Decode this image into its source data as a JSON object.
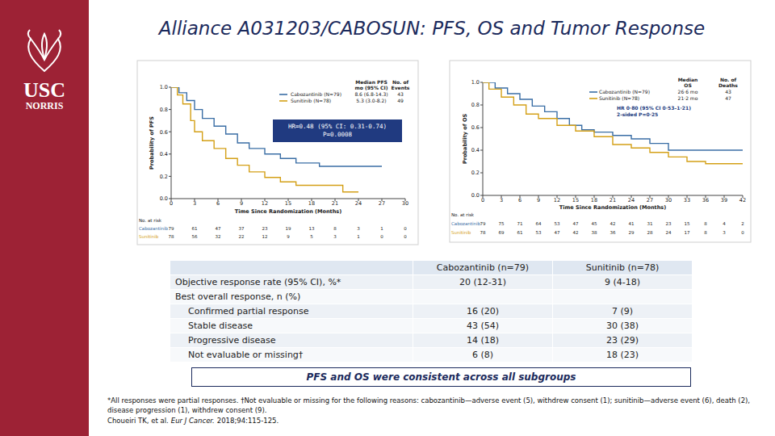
{
  "slide": {
    "title": "Alliance A031203/CABOSUN: PFS, OS and Tumor Response",
    "logo": [
      "USC",
      "NORRIS"
    ],
    "box": "PFS and OS were consistent across all subgroups",
    "footnote": "*All responses were partial responses. †Not evaluable or missing for the following reasons: cabozantinib—adverse event (5), withdrew consent (1); sunitinib—adverse event (6), death (2), disease progression (1), withdrew consent (9).",
    "citation": {
      "authors": "Choueiri TK, et al.",
      "journal": "Eur J Cancer.",
      "details": "2018;94:115-125."
    }
  },
  "table": {
    "columns": [
      "Cabozantinib (n=79)",
      "Sunitinib (n=78)"
    ],
    "rows": [
      {
        "label": "Objective response rate (95% CI), %*",
        "cells": [
          "20 (12-31)",
          "9 (4-18)"
        ]
      }
    ],
    "groups": [
      {
        "label": "Best overall response, n (%)",
        "rows": [
          {
            "label": "Confirmed partial response",
            "cells": [
              "16 (20)",
              "7 (9)"
            ]
          },
          {
            "label": "Stable disease",
            "cells": [
              "43 (54)",
              "30 (38)"
            ]
          },
          {
            "label": "Progressive disease",
            "cells": [
              "14 (18)",
              "23 (29)"
            ]
          },
          {
            "label": "Not evaluable or missing†",
            "cells": [
              "6 (8)",
              "18 (23)"
            ]
          }
        ]
      }
    ]
  },
  "chart_data": [
    {
      "type": "line",
      "xlabel": "Time Since Randomization (Months)",
      "ylabel": "Probability of PFS",
      "xlim": [
        0,
        30
      ],
      "xticks": [
        0,
        3,
        6,
        9,
        12,
        15,
        18,
        21,
        24,
        27,
        30
      ],
      "ylim": [
        0,
        1
      ],
      "yticks": [
        {
          "value": 0,
          "label": "0.0"
        },
        0.2,
        0.4,
        0.6,
        0.8,
        {
          "value": 1,
          "label": "1.0"
        }
      ],
      "grid": false,
      "legend": "top-right",
      "legend_headers": [
        [
          "Median PFS",
          "mo (95% CI)"
        ],
        [
          "No. of",
          "Events"
        ]
      ],
      "annotation": [
        "HR=0.48 (95% CI: 0.31-0.74)",
        "P=0.0008"
      ],
      "at_risk_title": "No. at risk",
      "series": [
        {
          "name": "Cabozantinib (N=79)",
          "color": "#3a6ea5",
          "median": "8.6 (6.8-14.3)",
          "count": 43,
          "at_risk_name": "Cabozantinib",
          "at_risk": [
            79,
            61,
            47,
            37,
            23,
            19,
            13,
            8,
            3,
            1,
            0
          ],
          "x": [
            0,
            1,
            1,
            2,
            2,
            3,
            3,
            4,
            4,
            5.5,
            5.5,
            7,
            7,
            8.5,
            8.5,
            10,
            10,
            12,
            12,
            14,
            14,
            16,
            16,
            19,
            19,
            27
          ],
          "values": [
            1,
            1,
            0.95,
            0.95,
            0.88,
            0.88,
            0.8,
            0.8,
            0.72,
            0.72,
            0.65,
            0.65,
            0.58,
            0.58,
            0.5,
            0.5,
            0.45,
            0.45,
            0.4,
            0.4,
            0.36,
            0.36,
            0.32,
            0.32,
            0.29,
            0.29
          ]
        },
        {
          "name": "Sunitinib (N=78)",
          "color": "#d4a017",
          "median": "5.3 (3.0-8.2)",
          "count": 49,
          "at_risk_name": "Sunitinib",
          "at_risk": [
            78,
            56,
            32,
            22,
            12,
            9,
            5,
            3,
            1,
            0,
            0
          ],
          "x": [
            0,
            0.8,
            0.8,
            1.5,
            1.5,
            2.5,
            2.5,
            3,
            3,
            4,
            4,
            5.5,
            5.5,
            7,
            7,
            8.5,
            8.5,
            10,
            10,
            12,
            12,
            14,
            14,
            16,
            16,
            22,
            22,
            24
          ],
          "values": [
            1,
            1,
            0.93,
            0.93,
            0.85,
            0.85,
            0.7,
            0.7,
            0.6,
            0.6,
            0.52,
            0.52,
            0.45,
            0.45,
            0.36,
            0.36,
            0.3,
            0.3,
            0.24,
            0.24,
            0.19,
            0.19,
            0.15,
            0.15,
            0.12,
            0.12,
            0.06,
            0.06
          ]
        }
      ]
    },
    {
      "type": "line",
      "xlabel": "Time Since Randomization (Months)",
      "ylabel": "Probability of OS",
      "xlim": [
        0,
        42
      ],
      "xticks": [
        0,
        3,
        6,
        9,
        12,
        15,
        18,
        21,
        24,
        27,
        30,
        33,
        36,
        39,
        42
      ],
      "ylim": [
        0,
        1
      ],
      "yticks": [
        {
          "value": 0,
          "label": "0.0"
        },
        0.2,
        0.4,
        0.6,
        0.8,
        {
          "value": 1,
          "label": "1.0"
        }
      ],
      "grid": false,
      "legend": "top-right",
      "legend_headers": [
        [
          "Median",
          "OS"
        ],
        [
          "No. of",
          "Deaths"
        ]
      ],
      "annotation": [
        "HR 0·80 (95% CI 0·53–1·21)",
        "2-sided P=0·25"
      ],
      "at_risk_title": "No. at risk",
      "series": [
        {
          "name": "Cabozantinib (N=79)",
          "color": "#3a6ea5",
          "median": "26·6 mo",
          "count": 43,
          "at_risk_name": "Cabozantinib",
          "at_risk": [
            79,
            75,
            71,
            64,
            53,
            47,
            45,
            42,
            41,
            31,
            23,
            15,
            8,
            4,
            2
          ],
          "x": [
            0,
            2,
            2,
            4,
            4,
            6,
            6,
            8,
            8,
            10,
            10,
            12,
            12,
            14,
            14,
            16,
            16,
            18,
            18,
            21,
            21,
            24,
            24,
            27,
            27,
            30,
            30,
            42
          ],
          "values": [
            1,
            1,
            0.95,
            0.95,
            0.9,
            0.9,
            0.85,
            0.85,
            0.79,
            0.79,
            0.74,
            0.74,
            0.68,
            0.68,
            0.62,
            0.62,
            0.58,
            0.58,
            0.56,
            0.56,
            0.53,
            0.53,
            0.5,
            0.5,
            0.46,
            0.46,
            0.4,
            0.4
          ]
        },
        {
          "name": "Sunitinib (N=78)",
          "color": "#d4a017",
          "median": "21·2 mo",
          "count": 47,
          "at_risk_name": "Sunitinib",
          "at_risk": [
            78,
            69,
            61,
            53,
            47,
            42,
            38,
            36,
            29,
            28,
            24,
            17,
            8,
            3,
            0
          ],
          "x": [
            0,
            1,
            1,
            3,
            3,
            5,
            5,
            7,
            7,
            9,
            9,
            12,
            12,
            15,
            15,
            18,
            18,
            21,
            21,
            24,
            24,
            27,
            27,
            30,
            30,
            33,
            33,
            36,
            36,
            42
          ],
          "values": [
            1,
            1,
            0.94,
            0.94,
            0.87,
            0.87,
            0.8,
            0.8,
            0.72,
            0.72,
            0.68,
            0.68,
            0.62,
            0.62,
            0.57,
            0.57,
            0.52,
            0.52,
            0.45,
            0.45,
            0.42,
            0.42,
            0.38,
            0.38,
            0.34,
            0.34,
            0.3,
            0.3,
            0.28,
            0.28
          ]
        }
      ]
    }
  ]
}
